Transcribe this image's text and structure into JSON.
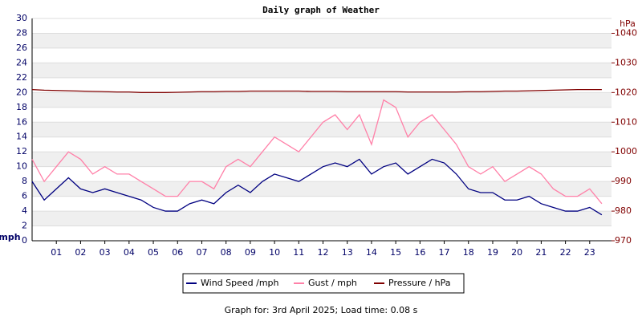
{
  "chart_data": {
    "type": "line",
    "title": "Daily graph of Weather",
    "y_label": "mph",
    "y2_label": "hPa",
    "footer": "Graph for: 3rd April 2025; Load time: 0.08 s",
    "xlim": [
      0,
      23.9
    ],
    "xticks": [
      {
        "value": 1,
        "label": "01"
      },
      {
        "value": 2,
        "label": "02"
      },
      {
        "value": 3,
        "label": "03"
      },
      {
        "value": 4,
        "label": "04"
      },
      {
        "value": 5,
        "label": "05"
      },
      {
        "value": 6,
        "label": "06"
      },
      {
        "value": 7,
        "label": "07"
      },
      {
        "value": 8,
        "label": "08"
      },
      {
        "value": 9,
        "label": "09"
      },
      {
        "value": 10,
        "label": "10"
      },
      {
        "value": 11,
        "label": "11"
      },
      {
        "value": 12,
        "label": "12"
      },
      {
        "value": 13,
        "label": "13"
      },
      {
        "value": 14,
        "label": "14"
      },
      {
        "value": 15,
        "label": "15"
      },
      {
        "value": 16,
        "label": "16"
      },
      {
        "value": 17,
        "label": "17"
      },
      {
        "value": 18,
        "label": "18"
      },
      {
        "value": 19,
        "label": "19"
      },
      {
        "value": 20,
        "label": "20"
      },
      {
        "value": 21,
        "label": "21"
      },
      {
        "value": 22,
        "label": "22"
      },
      {
        "value": 23,
        "label": "23"
      }
    ],
    "ylim": [
      0,
      30
    ],
    "yticks": [
      0,
      2,
      4,
      6,
      8,
      10,
      12,
      14,
      16,
      18,
      20,
      22,
      24,
      26,
      28,
      30
    ],
    "y2lim": [
      970,
      1045
    ],
    "y2ticks": [
      970,
      980,
      990,
      1000,
      1010,
      1020,
      1030,
      1040
    ],
    "x": [
      0,
      0.5,
      1,
      1.5,
      2,
      2.5,
      3,
      3.5,
      4,
      4.5,
      5,
      5.5,
      6,
      6.5,
      7,
      7.5,
      8,
      8.5,
      9,
      9.5,
      10,
      10.5,
      11,
      11.5,
      12,
      12.5,
      13,
      13.5,
      14,
      14.5,
      15,
      15.5,
      16,
      16.5,
      17,
      17.5,
      18,
      18.5,
      19,
      19.5,
      20,
      20.5,
      21,
      21.5,
      22,
      22.5,
      23,
      23.5
    ],
    "series": [
      {
        "name": "Wind Speed /mph",
        "color": "#000080",
        "axis": "y",
        "values": [
          8,
          5.5,
          7,
          8.5,
          7,
          6.5,
          7,
          6.5,
          6,
          5.5,
          4.5,
          4,
          4,
          5,
          5.5,
          5,
          6.5,
          7.5,
          6.5,
          8,
          9,
          8.5,
          8,
          9,
          10,
          10.5,
          10,
          11,
          9,
          10,
          10.5,
          9,
          10,
          11,
          10.5,
          9,
          7,
          6.5,
          6.5,
          5.5,
          5.5,
          6,
          5,
          4.5,
          4,
          4,
          4.5,
          3.5
        ]
      },
      {
        "name": "Gust / mph",
        "color": "#ff80a8",
        "axis": "y",
        "values": [
          11,
          8,
          10,
          12,
          11,
          9,
          10,
          9,
          9,
          8,
          7,
          6,
          6,
          8,
          8,
          7,
          10,
          11,
          10,
          12,
          14,
          13,
          12,
          14,
          16,
          17,
          15,
          17,
          13,
          19,
          18,
          14,
          16,
          17,
          15,
          13,
          10,
          9,
          10,
          8,
          9,
          10,
          9,
          7,
          6,
          6,
          7,
          5
        ]
      },
      {
        "name": "Pressure / hPa",
        "color": "#800000",
        "axis": "y2",
        "values": [
          1021,
          1020.8,
          1020.7,
          1020.6,
          1020.5,
          1020.4,
          1020.3,
          1020.2,
          1020.2,
          1020,
          1020,
          1020,
          1020.1,
          1020.2,
          1020.3,
          1020.3,
          1020.4,
          1020.4,
          1020.5,
          1020.5,
          1020.5,
          1020.5,
          1020.5,
          1020.4,
          1020.4,
          1020.4,
          1020.3,
          1020.3,
          1020.3,
          1020.3,
          1020.3,
          1020.2,
          1020.2,
          1020.2,
          1020.2,
          1020.2,
          1020.3,
          1020.3,
          1020.4,
          1020.5,
          1020.5,
          1020.6,
          1020.7,
          1020.8,
          1020.9,
          1021,
          1021,
          1021
        ]
      }
    ]
  }
}
